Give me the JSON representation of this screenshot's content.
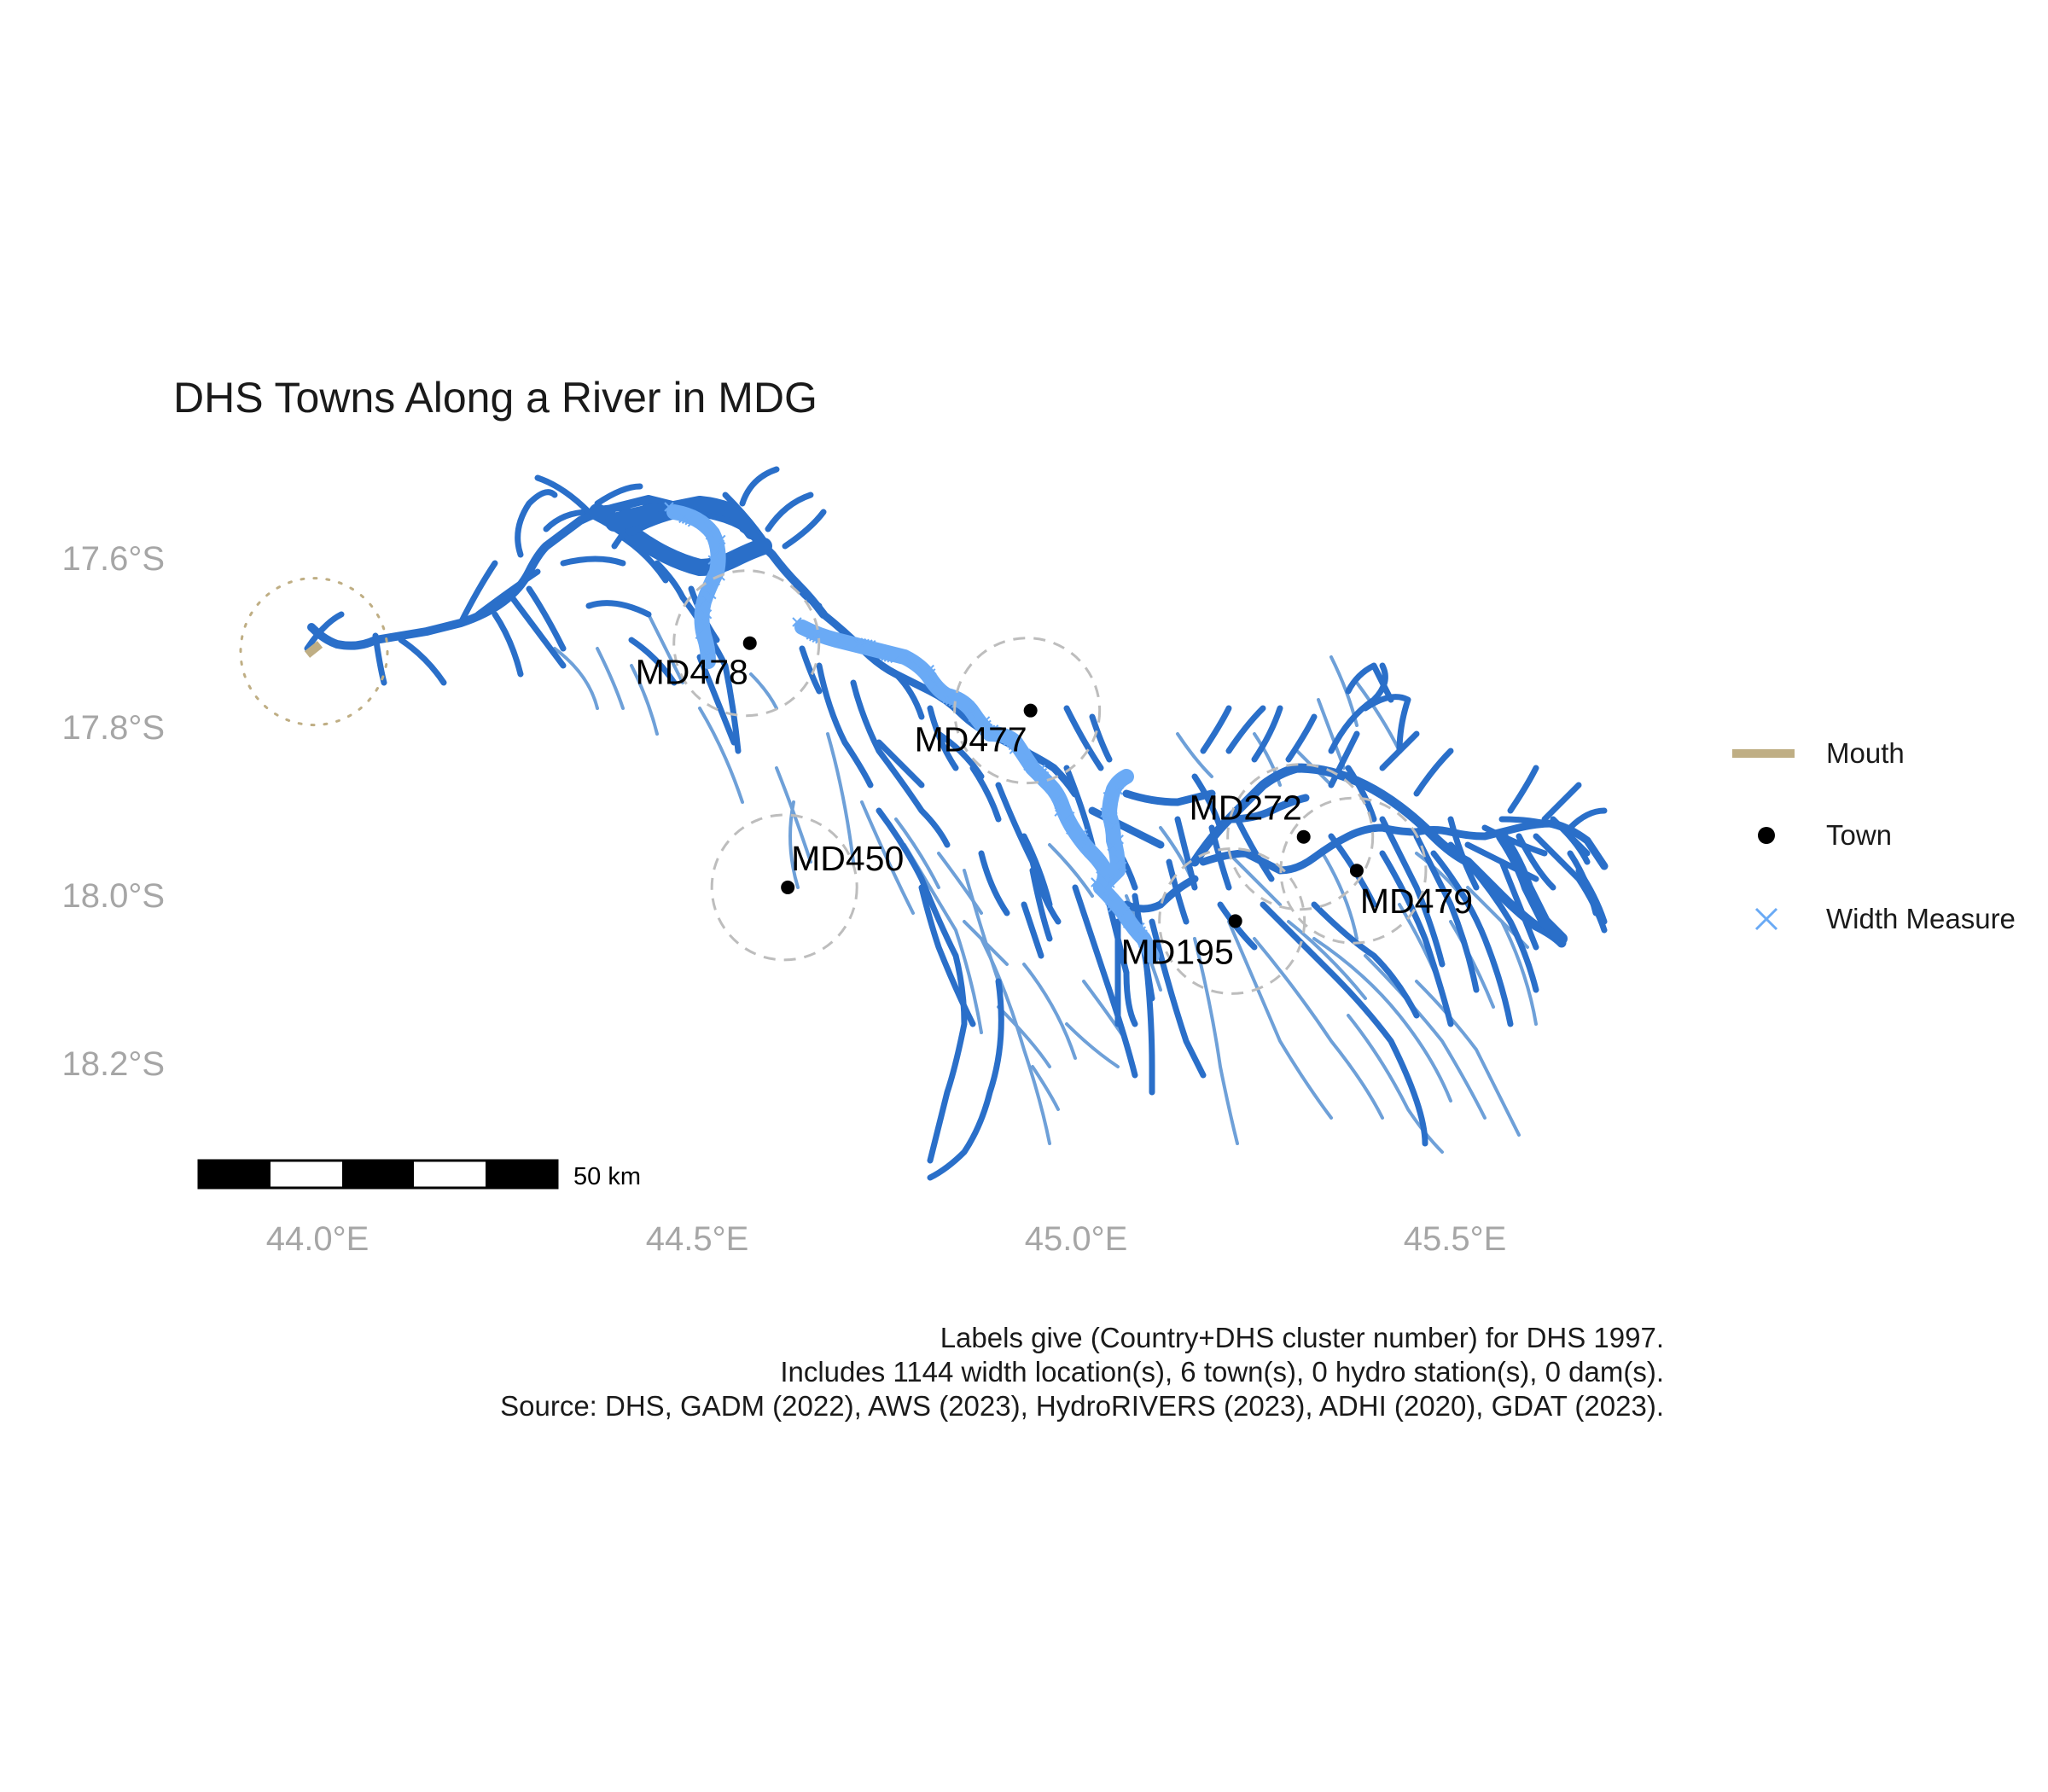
{
  "title": "DHS Towns Along a River in MDG",
  "colors": {
    "river_main": "#2a6fc9",
    "river_light": "#6ea0d8",
    "width_measure": "#6aaaf5",
    "mouth": "#bfae84",
    "town": "#000000",
    "buffer": "#bdbdbd"
  },
  "axes": {
    "x_ticks": [
      "44.0°E",
      "44.5°E",
      "45.0°E",
      "45.5°E"
    ],
    "y_ticks": [
      "17.6°S",
      "17.8°S",
      "18.0°S",
      "18.2°S"
    ]
  },
  "towns": [
    {
      "label": "MD478",
      "lon": 44.57,
      "lat": -17.7
    },
    {
      "label": "MD477",
      "lon": 44.94,
      "lat": -17.78
    },
    {
      "label": "MD450",
      "lon": 44.62,
      "lat": -17.99
    },
    {
      "label": "MD272",
      "lon": 45.3,
      "lat": -17.93
    },
    {
      "label": "MD195",
      "lon": 45.21,
      "lat": -18.03
    },
    {
      "label": "MD479",
      "lon": 45.37,
      "lat": -17.97
    }
  ],
  "mouth": {
    "lon": 44.0,
    "lat": -17.71
  },
  "legend": {
    "items": [
      {
        "label": "Mouth",
        "icon": "line-icon"
      },
      {
        "label": "Town",
        "icon": "dot-icon"
      },
      {
        "label": "Width Measure",
        "icon": "cross-icon"
      }
    ]
  },
  "scale_bar": {
    "label": "50 km"
  },
  "caption": [
    "Labels give (Country+DHS cluster number) for DHS 1997.",
    "Includes 1144 width location(s), 6 town(s), 0 hydro station(s), 0 dam(s).",
    "Source: DHS, GADM (2022), AWS (2023), HydroRIVERS (2023), ADHI (2020), GDAT (2023)."
  ]
}
